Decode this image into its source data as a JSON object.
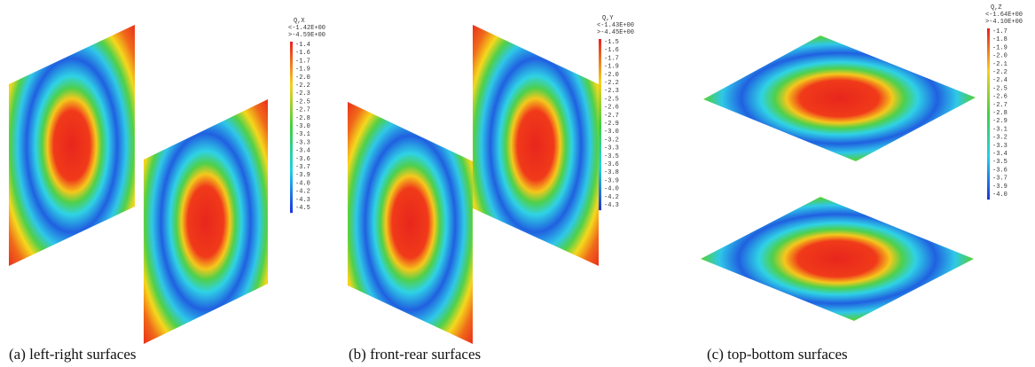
{
  "panels": [
    {
      "caption": "(a)  left-right surfaces",
      "colorbar": {
        "title": "Q,X",
        "max": "<-1.42E+00",
        "min": ">-4.59E+00",
        "labels": [
          "-1.4",
          "-1.6",
          "-1.7",
          "-1.9",
          "-2.0",
          "-2.2",
          "-2.3",
          "-2.5",
          "-2.7",
          "-2.8",
          "-3.0",
          "-3.1",
          "-3.3",
          "-3.4",
          "-3.6",
          "-3.7",
          "-3.9",
          "-4.0",
          "-4.2",
          "-4.3",
          "-4.5"
        ]
      }
    },
    {
      "caption": "(b)  front-rear surfaces",
      "colorbar": {
        "title": "Q,Y",
        "max": "<-1.43E+00",
        "min": ">-4.45E+00",
        "labels": [
          "-1.5",
          "-1.6",
          "-1.7",
          "-1.9",
          "-2.0",
          "-2.2",
          "-2.3",
          "-2.5",
          "-2.6",
          "-2.7",
          "-2.9",
          "-3.0",
          "-3.2",
          "-3.3",
          "-3.5",
          "-3.6",
          "-3.8",
          "-3.9",
          "-4.0",
          "-4.2",
          "-4.3"
        ]
      }
    },
    {
      "caption": "(c)  top-bottom surfaces",
      "colorbar": {
        "title": "Q,Z",
        "max": "<-1.64E+00",
        "min": ">-4.10E+00",
        "labels": [
          "-1.7",
          "-1.8",
          "-1.9",
          "-2.0",
          "-2.1",
          "-2.2",
          "-2.4",
          "-2.5",
          "-2.6",
          "-2.7",
          "-2.8",
          "-2.9",
          "-3.1",
          "-3.2",
          "-3.3",
          "-3.4",
          "-3.5",
          "-3.6",
          "-3.7",
          "-3.9",
          "-4.0"
        ]
      }
    }
  ]
}
